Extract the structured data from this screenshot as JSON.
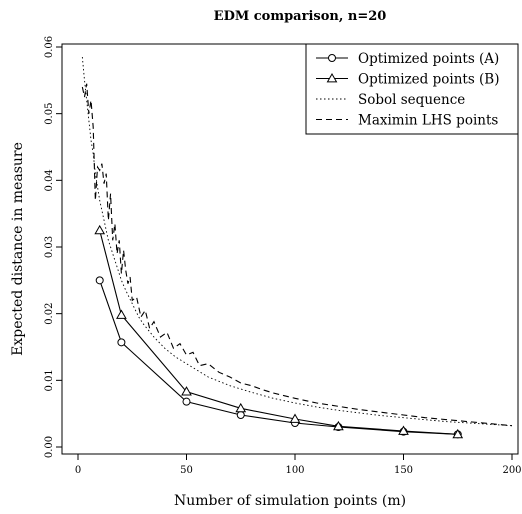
{
  "chart_data": {
    "type": "line",
    "title": "EDM comparison, n=20",
    "xlabel": "Number of simulation points (m)",
    "ylabel": "Expected distance in measure",
    "xlim": [
      0,
      200
    ],
    "ylim": [
      0,
      0.06
    ],
    "x_ticks": [
      0,
      50,
      100,
      150,
      200
    ],
    "x_tick_labels": [
      "0",
      "50",
      "100",
      "150",
      "200"
    ],
    "y_ticks": [
      0,
      0.01,
      0.02,
      0.03,
      0.04,
      0.05,
      0.06
    ],
    "y_tick_labels": [
      "0.00",
      "0.01",
      "0.02",
      "0.03",
      "0.04",
      "0.05",
      "0.06"
    ],
    "grid": false,
    "legend_position": "top-right",
    "series": [
      {
        "name": "Optimized points (A)",
        "style": "solid",
        "marker": "circle",
        "x": [
          10,
          20,
          50,
          75,
          100,
          120,
          150,
          175
        ],
        "y": [
          0.025,
          0.0157,
          0.0068,
          0.0048,
          0.0036,
          0.003,
          0.0023,
          0.0019
        ]
      },
      {
        "name": "Optimized points (B)",
        "style": "solid",
        "marker": "triangle",
        "x": [
          10,
          20,
          50,
          75,
          100,
          120,
          150,
          175
        ],
        "y": [
          0.0325,
          0.0198,
          0.0083,
          0.0058,
          0.0042,
          0.0031,
          0.0024,
          0.0019
        ]
      },
      {
        "name": "Sobol sequence",
        "style": "dotted",
        "marker": "none",
        "x": [
          2,
          3,
          4,
          5,
          6,
          7,
          8,
          9,
          10,
          12,
          14,
          16,
          18,
          20,
          22,
          25,
          28,
          30,
          35,
          40,
          45,
          50,
          55,
          60,
          70,
          80,
          90,
          100,
          110,
          120,
          130,
          140,
          150,
          160,
          170,
          180,
          190,
          200
        ],
        "y": [
          0.0585,
          0.055,
          0.052,
          0.049,
          0.046,
          0.044,
          0.041,
          0.039,
          0.037,
          0.034,
          0.031,
          0.029,
          0.027,
          0.025,
          0.0235,
          0.0215,
          0.0195,
          0.0185,
          0.0165,
          0.0148,
          0.0135,
          0.0125,
          0.0115,
          0.0105,
          0.0092,
          0.0082,
          0.0073,
          0.0066,
          0.006,
          0.0055,
          0.0051,
          0.0047,
          0.0044,
          0.0041,
          0.0038,
          0.0036,
          0.0034,
          0.0032
        ]
      },
      {
        "name": "Maximin LHS points",
        "style": "dashed",
        "marker": "none",
        "x": [
          2,
          3,
          4,
          5,
          6,
          7,
          8,
          9,
          10,
          11,
          12,
          13,
          14,
          15,
          16,
          17,
          18,
          19,
          20,
          21,
          22,
          23,
          24,
          25,
          27,
          29,
          31,
          33,
          35,
          38,
          41,
          44,
          47,
          50,
          53,
          56,
          60,
          65,
          70,
          75,
          80,
          85,
          90,
          95,
          100,
          110,
          120,
          130,
          140,
          150,
          160,
          170,
          180,
          190,
          200
        ],
        "y": [
          0.054,
          0.0525,
          0.0545,
          0.05,
          0.052,
          0.048,
          0.037,
          0.042,
          0.0415,
          0.0425,
          0.0395,
          0.041,
          0.034,
          0.038,
          0.031,
          0.0335,
          0.029,
          0.031,
          0.026,
          0.0295,
          0.0265,
          0.0245,
          0.0255,
          0.022,
          0.0225,
          0.0195,
          0.0205,
          0.0178,
          0.0188,
          0.0165,
          0.0172,
          0.0148,
          0.0155,
          0.0138,
          0.0142,
          0.0122,
          0.0125,
          0.0112,
          0.0105,
          0.0096,
          0.0092,
          0.0086,
          0.0081,
          0.0077,
          0.0073,
          0.0066,
          0.0061,
          0.0056,
          0.0052,
          0.0048,
          0.0044,
          0.0041,
          0.0038,
          0.0035,
          0.0032
        ]
      }
    ]
  }
}
